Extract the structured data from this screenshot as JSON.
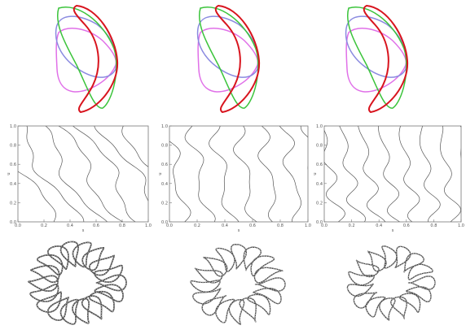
{
  "colors": {
    "red": "#d8141e",
    "green": "#3bc43b",
    "blue": "#8a8ae0",
    "magenta": "#e070e8",
    "contour": "#555555",
    "coil": "#444444"
  },
  "cross_sections": {
    "curve_order": [
      "magenta",
      "blue",
      "green",
      "red"
    ],
    "panels": [
      "left",
      "middle",
      "right"
    ]
  },
  "contour_plots": {
    "xticks": [
      "0.0",
      "0.2",
      "0.4",
      "0.6",
      "0.8",
      "1.0"
    ],
    "yticks": [
      "0.0",
      "0.2",
      "0.4",
      "0.6",
      "0.8",
      "1.0"
    ],
    "xlabel": "s",
    "ylabel": "u",
    "wavelengths": [
      0.9,
      0.55,
      0.4
    ],
    "line_counts": [
      6,
      6,
      7
    ]
  },
  "coil_sets": {
    "coil_counts": [
      18,
      16,
      15
    ],
    "panels": [
      "left",
      "middle",
      "right"
    ]
  }
}
